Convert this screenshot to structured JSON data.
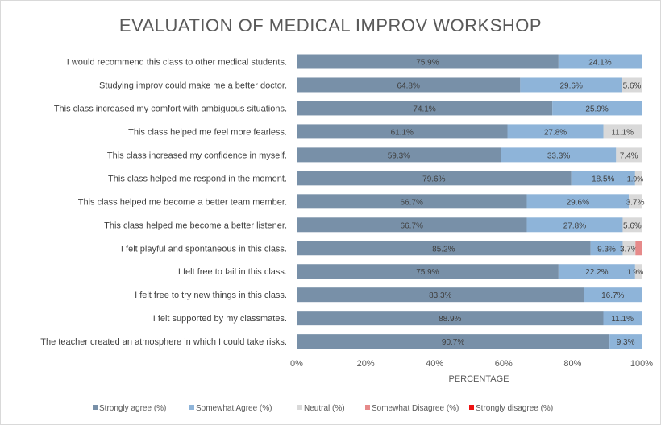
{
  "chart_data": {
    "type": "bar",
    "orientation": "horizontal",
    "stacked": true,
    "title": "EVALUATION OF MEDICAL IMPROV WORKSHOP",
    "xlabel": "PERCENTAGE",
    "ylabel": "",
    "xlim": [
      0,
      100
    ],
    "ticks": [
      "0%",
      "20%",
      "40%",
      "60%",
      "80%",
      "100%"
    ],
    "tick_values": [
      0,
      20,
      40,
      60,
      80,
      100
    ],
    "legend_position": "bottom",
    "grid": false,
    "categories": [
      "I would recommend this class to other medical students.",
      "Studying improv could make me a better doctor.",
      "This class increased my comfort with ambiguous situations.",
      "This class helped me feel more fearless.",
      "This class increased my confidence in myself.",
      "This class helped me respond in the moment.",
      "This class helped me become a better team member.",
      "This class helped me become a better listener.",
      "I felt playful and spontaneous in this class.",
      "I felt free to fail in this class.",
      "I felt free to try new things in this class.",
      "I felt supported by my classmates.",
      "The teacher created an atmosphere in which I could take risks."
    ],
    "series": [
      {
        "name": "Strongly agree (%)",
        "color": "#7890a8",
        "values": [
          75.9,
          64.8,
          74.1,
          61.1,
          59.3,
          79.6,
          66.7,
          66.7,
          85.2,
          75.9,
          83.3,
          88.9,
          90.7
        ],
        "labels": [
          "75.9%",
          "64.8%",
          "74.1%",
          "61.1%",
          "59.3%",
          "79.6%",
          "66.7%",
          "66.7%",
          "85.2%",
          "75.9%",
          "83.3%",
          "88.9%",
          "90.7%"
        ]
      },
      {
        "name": "Somewhat Agree (%)",
        "color": "#8eb4d9",
        "values": [
          24.1,
          29.6,
          25.9,
          27.8,
          33.3,
          18.5,
          29.6,
          27.8,
          9.3,
          22.2,
          16.7,
          11.1,
          9.3
        ],
        "labels": [
          "24.1%",
          "29.6%",
          "25.9%",
          "27.8%",
          "33.3%",
          "18.5%",
          "29.6%",
          "27.8%",
          "9.3%",
          "22.2%",
          "16.7%",
          "11.1%",
          "9.3%"
        ]
      },
      {
        "name": "Neutral (%)",
        "color": "#d9d9d9",
        "values": [
          0,
          5.6,
          0,
          11.1,
          7.4,
          1.9,
          3.7,
          5.6,
          3.7,
          1.9,
          0,
          0,
          0
        ],
        "labels": [
          "",
          "5.6%",
          "",
          "11.1%",
          "7.4%",
          "1.9%",
          "3.7%",
          "5.6%",
          "3.7%",
          "1.9%",
          "",
          "",
          ""
        ]
      },
      {
        "name": "Somewhat Disagree (%)",
        "color": "#e68a8a",
        "values": [
          0,
          0,
          0,
          0,
          0,
          0,
          0,
          0,
          1.9,
          0,
          0,
          0,
          0
        ],
        "labels": [
          "",
          "",
          "",
          "",
          "",
          "",
          "",
          "",
          "",
          "",
          "",
          "",
          ""
        ]
      },
      {
        "name": "Strongly disagree (%)",
        "color": "#ee1111",
        "values": [
          0,
          0,
          0,
          0,
          0,
          0,
          0,
          0,
          0,
          0,
          0,
          0,
          0
        ],
        "labels": [
          "",
          "",
          "",
          "",
          "",
          "",
          "",
          "",
          "",
          "",
          "",
          "",
          ""
        ]
      }
    ]
  }
}
